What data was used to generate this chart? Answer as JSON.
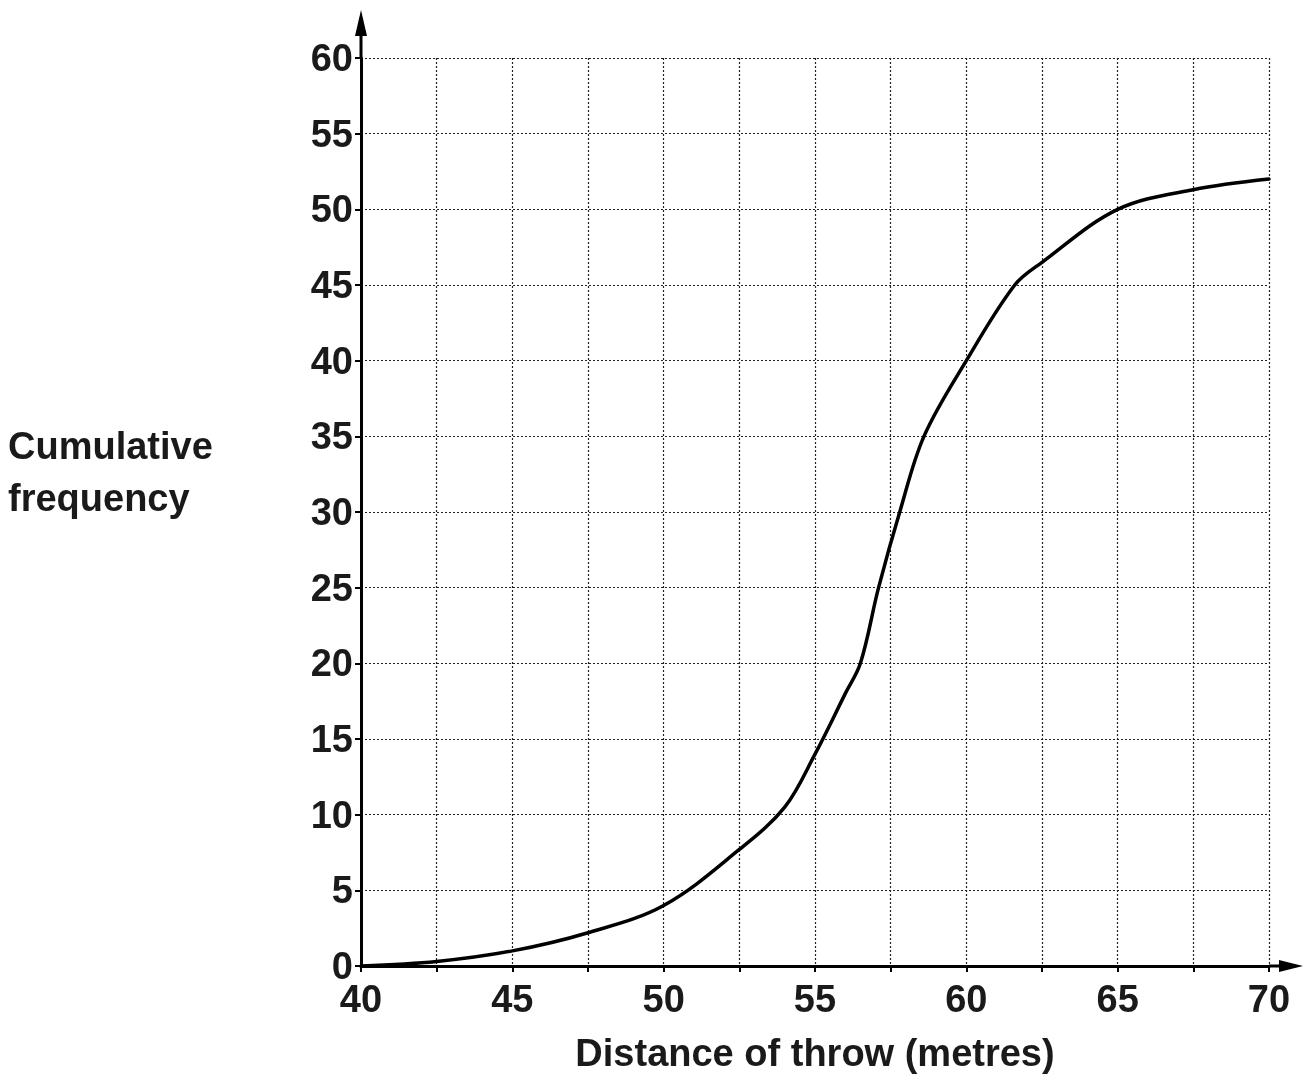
{
  "chart_data": {
    "type": "line",
    "xlabel": "Distance of throw (metres)",
    "ylabel": "Cumulative frequency",
    "x": [
      40,
      42.5,
      45,
      47.5,
      50,
      52.5,
      54,
      55,
      56,
      56.5,
      57.1,
      57.8,
      58.6,
      60,
      61.6,
      62.5,
      65,
      67.5,
      70
    ],
    "series": [
      {
        "color": "#000000",
        "values": [
          0,
          0.3,
          1,
          2.2,
          4,
          7.7,
          10.5,
          14,
          18,
          20,
          25,
          30,
          35,
          40,
          45,
          46.5,
          50,
          51.3,
          52
        ]
      }
    ],
    "xlim": [
      40,
      70
    ],
    "xticks": [
      40,
      {
        "value": 42.5,
        "label": null
      },
      45,
      {
        "value": 47.5,
        "label": null
      },
      50,
      {
        "value": 52.5,
        "label": null
      },
      55,
      {
        "value": 57.5,
        "label": null
      },
      60,
      {
        "value": 62.5,
        "label": null
      },
      65,
      {
        "value": 67.5,
        "label": null
      },
      70
    ],
    "ylim": [
      0,
      60
    ],
    "yticks": [
      0,
      5,
      10,
      15,
      20,
      25,
      30,
      35,
      40,
      45,
      50,
      55,
      60
    ],
    "grid": true,
    "marker": "none",
    "line_style": "solid"
  }
}
